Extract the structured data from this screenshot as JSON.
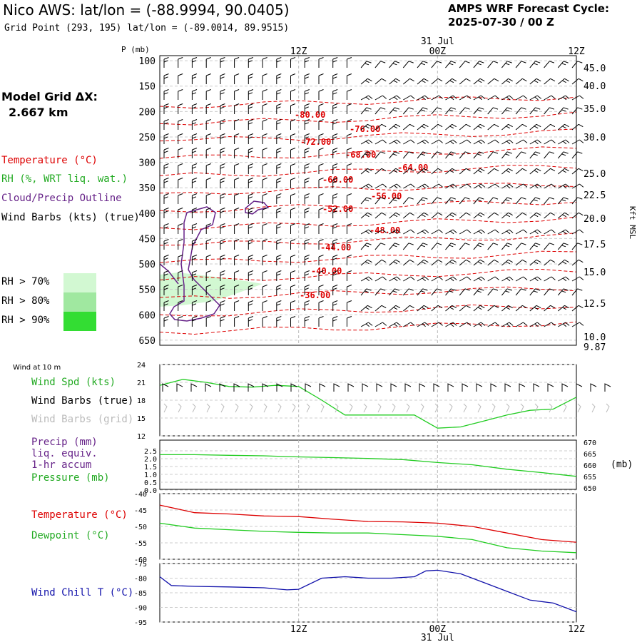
{
  "header": {
    "title": "Nico AWS:  lat/lon = (-88.9994, 90.0405)",
    "subtitle": "Grid Point (293, 195) lat/lon = (-89.0014, 89.9515)",
    "cycle_line1": "AMPS WRF Forecast Cycle:",
    "cycle_line2": "2025-07-30 / 00  Z"
  },
  "model_grid": {
    "label": "Model Grid ΔX:",
    "value": "2.667 km"
  },
  "legend_upper": {
    "temperature": "Temperature (°C)",
    "rh": "RH (%, WRT liq. wat.)",
    "cloud": "Cloud/Precip Outline",
    "wind": "Wind Barbs (kts) (true)",
    "rh_levels": [
      "RH > 70%",
      "RH > 80%",
      "RH > 90%"
    ],
    "rh_colors": [
      "#d2f8d2",
      "#a0e8a0",
      "#33dd33"
    ]
  },
  "legend_lower": {
    "wind_at_10m": "Wind at 10 m",
    "wind_spd": "Wind Spd (kts)",
    "wind_barbs_true": "Wind Barbs (true)",
    "wind_barbs_grid": "Wind Barbs (grid)",
    "precip1": "Precip (mm)",
    "precip2": "liq. equiv.",
    "precip3": "1-hr accum",
    "pressure": "Pressure (mb)",
    "temperature": "Temperature (°C)",
    "dewpoint": "Dewpoint (°C)",
    "windchill": "Wind Chill T (°C)",
    "mb_unit": "(mb)"
  },
  "colors": {
    "temperature": "#dd0000",
    "rh_green": "#22cc22",
    "cloud": "#662288",
    "wind_true": "#000000",
    "wind_grid": "#bbbbbb",
    "windchill": "#1111aa",
    "grid": "#aaaaaa"
  },
  "time_axis": {
    "top_labels": [
      "12Z",
      "00Z",
      "12Z"
    ],
    "date_top": "31 Jul",
    "bottom_labels": [
      "12Z",
      "00Z",
      "12Z"
    ],
    "date_bottom": "31 Jul"
  },
  "chart_data": [
    {
      "type": "line",
      "name": "time-height cross section",
      "y_axis_label": "P (mb)",
      "pressure_ticks": [
        "100",
        "150",
        "200",
        "250",
        "300",
        "350",
        "400",
        "450",
        "500",
        "550",
        "600",
        "650"
      ],
      "right_axis_label": "Kft MSL",
      "height_ticks": [
        "45.0",
        "40.0",
        "35.0",
        "30.0",
        "25.0",
        "22.5",
        "20.0",
        "17.5",
        "15.0",
        "12.5",
        "10.0",
        "9.87"
      ],
      "temperature_contour_labels": [
        "-80.00",
        "-76.00",
        "-72.00",
        "-68.00",
        "-64.00",
        "-60.00",
        "-56.00",
        "-52.00",
        "-48.00",
        "-44.00",
        "-40.00",
        "-36.00"
      ]
    },
    {
      "type": "line",
      "name": "10 m wind speed",
      "y_ticks": [
        "24",
        "21",
        "18",
        "15",
        "12"
      ],
      "ylim": [
        12,
        24
      ],
      "x_hours": [
        0,
        2,
        4,
        6,
        8,
        10,
        12,
        14,
        16,
        18,
        20,
        22,
        24,
        26,
        28,
        30,
        32,
        34,
        36
      ],
      "values": [
        20.5,
        21.5,
        21,
        20.3,
        20.2,
        20.5,
        20.3,
        18,
        15.5,
        15.5,
        15.5,
        15.5,
        13.3,
        13.5,
        14.5,
        15.5,
        16.3,
        16.5,
        18.5
      ]
    },
    {
      "type": "line",
      "name": "precip and pressure",
      "left_ticks": [
        "2.5",
        "2.0",
        "1.5",
        "1.0",
        "0.5",
        "0.0"
      ],
      "right_ticks": [
        "670",
        "665",
        "660",
        "655",
        "650"
      ],
      "pressure_x_hours": [
        0,
        3,
        6,
        9,
        12,
        15,
        18,
        21,
        24,
        27,
        30,
        33,
        36
      ],
      "pressure_values": [
        665.5,
        665.5,
        665.2,
        665,
        664.5,
        664.2,
        663.8,
        663.3,
        662,
        661,
        659,
        657.5,
        655.8
      ]
    },
    {
      "type": "line",
      "name": "temperature and dewpoint",
      "y_ticks": [
        "-40",
        "-45",
        "-50",
        "-55",
        "-60"
      ],
      "x_hours": [
        0,
        3,
        6,
        9,
        12,
        15,
        18,
        21,
        24,
        27,
        30,
        33,
        36
      ],
      "temperature": [
        -43.5,
        -45.8,
        -46.2,
        -46.8,
        -47,
        -47.8,
        -48.5,
        -48.6,
        -49,
        -50,
        -52,
        -54,
        -54.8
      ],
      "dewpoint": [
        -49,
        -50.5,
        -51,
        -51.5,
        -51.8,
        -52,
        -52,
        -52.5,
        -53,
        -54,
        -56.5,
        -57.5,
        -58
      ]
    },
    {
      "type": "line",
      "name": "wind chill",
      "y_ticks": [
        "-75",
        "-80",
        "-85",
        "-90",
        "-95"
      ],
      "x_hours": [
        0,
        1,
        3,
        6,
        9,
        11,
        12,
        14,
        16,
        18,
        20,
        22,
        23,
        24,
        26,
        28,
        30,
        32,
        34,
        36
      ],
      "values": [
        -79.5,
        -82.5,
        -82.8,
        -83,
        -83.3,
        -84,
        -83.8,
        -80,
        -79.5,
        -80,
        -80,
        -79.5,
        -77.5,
        -77.3,
        -78.5,
        -81.5,
        -84.5,
        -87.5,
        -88.5,
        -91.5
      ]
    }
  ]
}
